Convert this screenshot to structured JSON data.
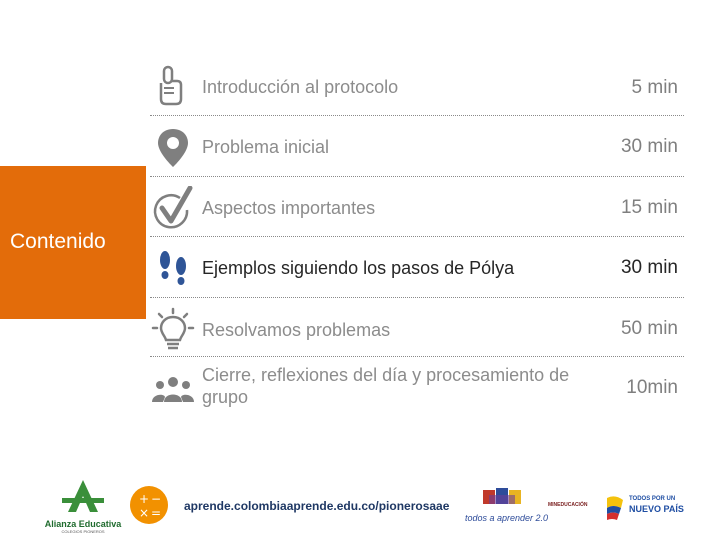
{
  "sidebar": {
    "label": "Contenido",
    "color": "#e36c0a"
  },
  "rows": [
    {
      "icon": "raised-finger-icon",
      "label": "Introducción al protocolo",
      "duration": "5 min"
    },
    {
      "icon": "map-pin-icon",
      "label": "Problema inicial",
      "duration": "30 min"
    },
    {
      "icon": "checkmark-circle-icon",
      "label": "Aspectos importantes",
      "duration": "15 min"
    },
    {
      "icon": "footprints-icon",
      "label": "Ejemplos siguiendo los pasos de Pólya",
      "duration": "30 min"
    },
    {
      "icon": "lightbulb-icon",
      "label": "Resolvamos problemas",
      "duration": "50 min"
    },
    {
      "icon": "group-icon",
      "label": "Cierre, reflexiones del día y procesamiento de grupo",
      "duration": "10min"
    }
  ],
  "footer": {
    "url": "aprende.colombiaaprende.edu.co/pionerosaae",
    "logo_alianza": "Alianza Educativa",
    "logo_alianza_sub": "COLEGIOS PIONEROS",
    "logo_todos": "todos a aprender 2.0",
    "logo_mineducacion": "MINEDUCACIÓN",
    "logo_nuevo_pais_top": "TODOS POR UN",
    "logo_nuevo_pais_main": "NUEVO PAÍS"
  },
  "colors": {
    "accent": "#e36c0a",
    "icon_gray": "#7f7f7f",
    "text_gray": "#8c8c8c",
    "highlight_icon": "#2f5597"
  }
}
